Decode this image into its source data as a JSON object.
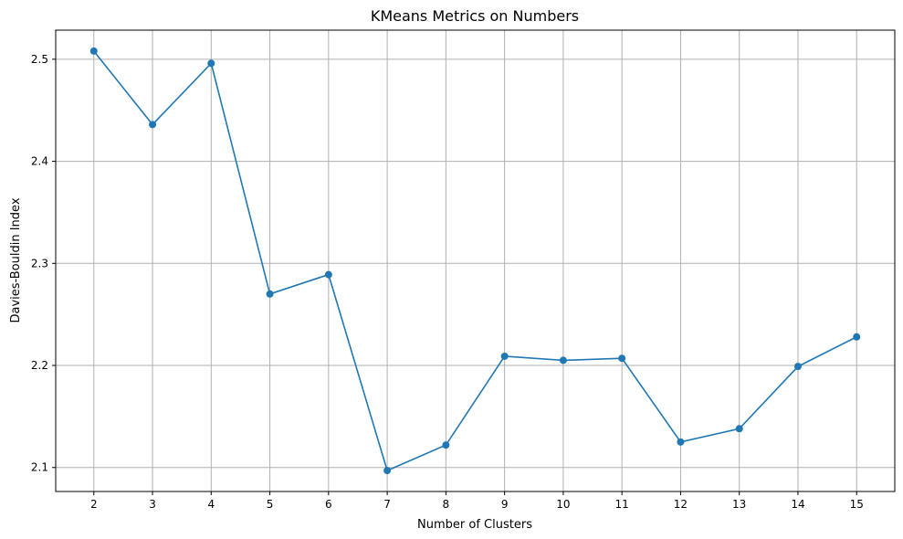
{
  "chart_data": {
    "type": "line",
    "title": "KMeans Metrics on Numbers",
    "xlabel": "Number of Clusters",
    "ylabel": "Davies-Bouldin Index",
    "x": [
      2,
      3,
      4,
      5,
      6,
      7,
      8,
      9,
      10,
      11,
      12,
      13,
      14,
      15
    ],
    "series": [
      {
        "values": [
          2.508,
          2.436,
          2.496,
          2.27,
          2.289,
          2.097,
          2.122,
          2.209,
          2.205,
          2.207,
          2.125,
          2.138,
          2.199,
          2.228
        ],
        "color": "#1f77b4",
        "marker": "circle"
      }
    ],
    "xticks": [
      "2",
      "3",
      "4",
      "5",
      "6",
      "7",
      "8",
      "9",
      "10",
      "11",
      "12",
      "13",
      "14",
      "15"
    ],
    "yticks": [
      2.1,
      2.2,
      2.3,
      2.4,
      2.5
    ],
    "ytick_labels": [
      "2.1",
      "2.2",
      "2.3",
      "2.4",
      "2.5"
    ],
    "xlim": [
      1.35,
      15.65
    ],
    "ylim": [
      2.0765,
      2.5285
    ],
    "grid": true,
    "legend": false
  }
}
